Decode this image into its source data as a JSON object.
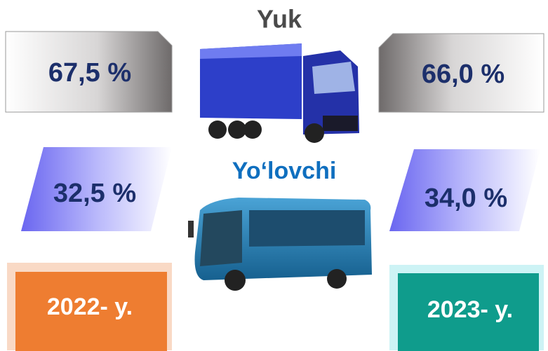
{
  "header": {
    "freight": "Yuk",
    "passenger": "Yo‘lovchi"
  },
  "years": [
    {
      "label": "2022- y.",
      "freight": "67,5 %",
      "passenger": "32,5 %"
    },
    {
      "label": "2023- y.",
      "freight": "66,0 %",
      "passenger": "34,0 %"
    }
  ]
}
